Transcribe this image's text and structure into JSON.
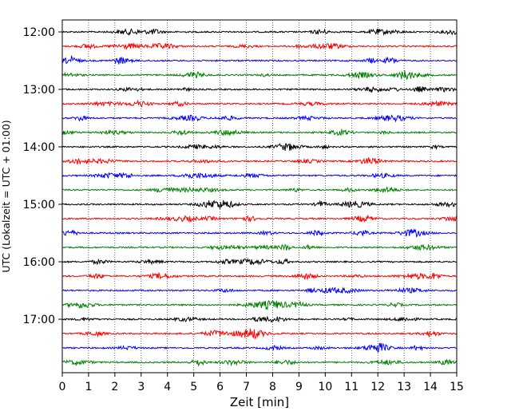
{
  "chart_data": {
    "type": "line",
    "title": "",
    "xlabel": "Zeit  [min]",
    "ylabel": "UTC (Lokalzeit = UTC + 01:00)",
    "xlim": [
      0,
      15
    ],
    "x_ticks": [
      "0",
      "1",
      "2",
      "3",
      "4",
      "5",
      "6",
      "7",
      "8",
      "9",
      "10",
      "11",
      "12",
      "13",
      "14",
      "15"
    ],
    "y_ticks": [
      "12:00",
      "13:00",
      "14:00",
      "15:00",
      "16:00",
      "17:00"
    ],
    "grid": "vertical dotted",
    "trace_interval_min": 15,
    "color_cycle": [
      "#000000",
      "#ff0000",
      "#0000ff",
      "#008000"
    ],
    "traces": [
      {
        "start": "12:00",
        "color": "#000000"
      },
      {
        "start": "12:15",
        "color": "#ff0000"
      },
      {
        "start": "12:30",
        "color": "#0000ff"
      },
      {
        "start": "12:45",
        "color": "#008000"
      },
      {
        "start": "13:00",
        "color": "#000000"
      },
      {
        "start": "13:15",
        "color": "#ff0000"
      },
      {
        "start": "13:30",
        "color": "#0000ff"
      },
      {
        "start": "13:45",
        "color": "#008000"
      },
      {
        "start": "14:00",
        "color": "#000000"
      },
      {
        "start": "14:15",
        "color": "#ff0000"
      },
      {
        "start": "14:30",
        "color": "#0000ff"
      },
      {
        "start": "14:45",
        "color": "#008000"
      },
      {
        "start": "15:00",
        "color": "#000000"
      },
      {
        "start": "15:15",
        "color": "#ff0000"
      },
      {
        "start": "15:30",
        "color": "#0000ff"
      },
      {
        "start": "15:45",
        "color": "#008000"
      },
      {
        "start": "16:00",
        "color": "#000000"
      },
      {
        "start": "16:15",
        "color": "#ff0000"
      },
      {
        "start": "16:30",
        "color": "#0000ff"
      },
      {
        "start": "16:45",
        "color": "#008000"
      },
      {
        "start": "17:00",
        "color": "#000000"
      },
      {
        "start": "17:15",
        "color": "#ff0000"
      },
      {
        "start": "17:30",
        "color": "#0000ff"
      },
      {
        "start": "17:45",
        "color": "#008000"
      }
    ]
  }
}
